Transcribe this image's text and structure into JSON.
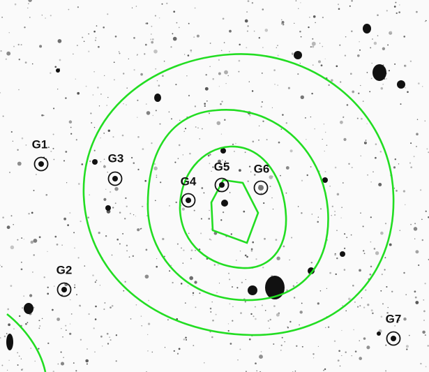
{
  "galaxies": [
    {
      "label": "G1"
    },
    {
      "label": "G2"
    },
    {
      "label": "G3"
    },
    {
      "label": "G4"
    },
    {
      "label": "G5"
    },
    {
      "label": "G6"
    },
    {
      "label": "G7"
    }
  ]
}
